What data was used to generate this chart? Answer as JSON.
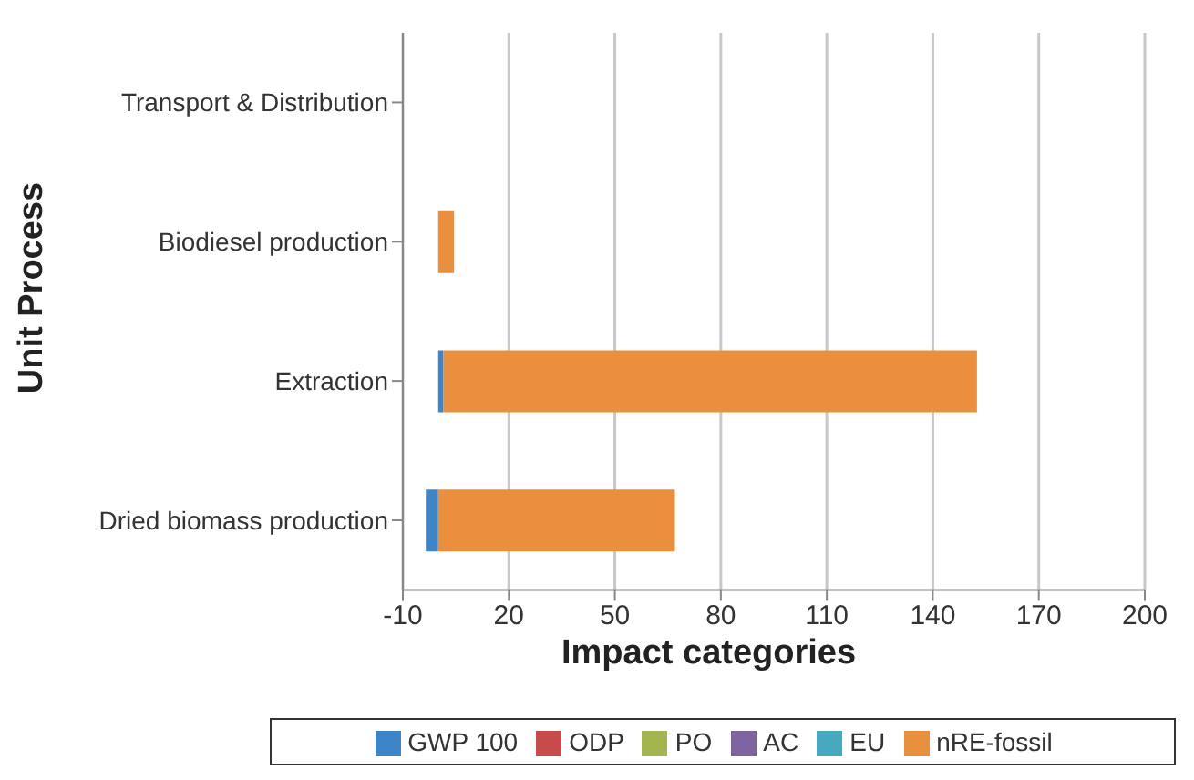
{
  "chart_data": {
    "type": "bar",
    "orientation": "horizontal",
    "stacked": true,
    "xlabel": "Impact categories",
    "ylabel": "Unit Process",
    "categories": [
      "Transport & Distribution",
      "Biodiesel production",
      "Extraction",
      "Dried biomass production"
    ],
    "series": [
      {
        "name": "GWP 100",
        "color": "#3d85c6",
        "values": [
          0,
          0,
          1.5,
          -3.5
        ]
      },
      {
        "name": "ODP",
        "color": "#c84b4b",
        "values": [
          0,
          0,
          0,
          0
        ]
      },
      {
        "name": "PO",
        "color": "#a3b550",
        "values": [
          0,
          0,
          0,
          0
        ]
      },
      {
        "name": "AC",
        "color": "#7d63a0",
        "values": [
          0,
          0,
          0,
          0
        ]
      },
      {
        "name": "EU",
        "color": "#45a9c0",
        "values": [
          0,
          0,
          0,
          0
        ]
      },
      {
        "name": "nRE-fossil",
        "color": "#ea8f3d",
        "values": [
          0,
          4.5,
          151,
          67
        ]
      }
    ],
    "xlim": [
      -10,
      200
    ],
    "xticks": [
      -10,
      20,
      50,
      80,
      110,
      140,
      170,
      200
    ],
    "grid": "x",
    "legend": "bottom"
  }
}
